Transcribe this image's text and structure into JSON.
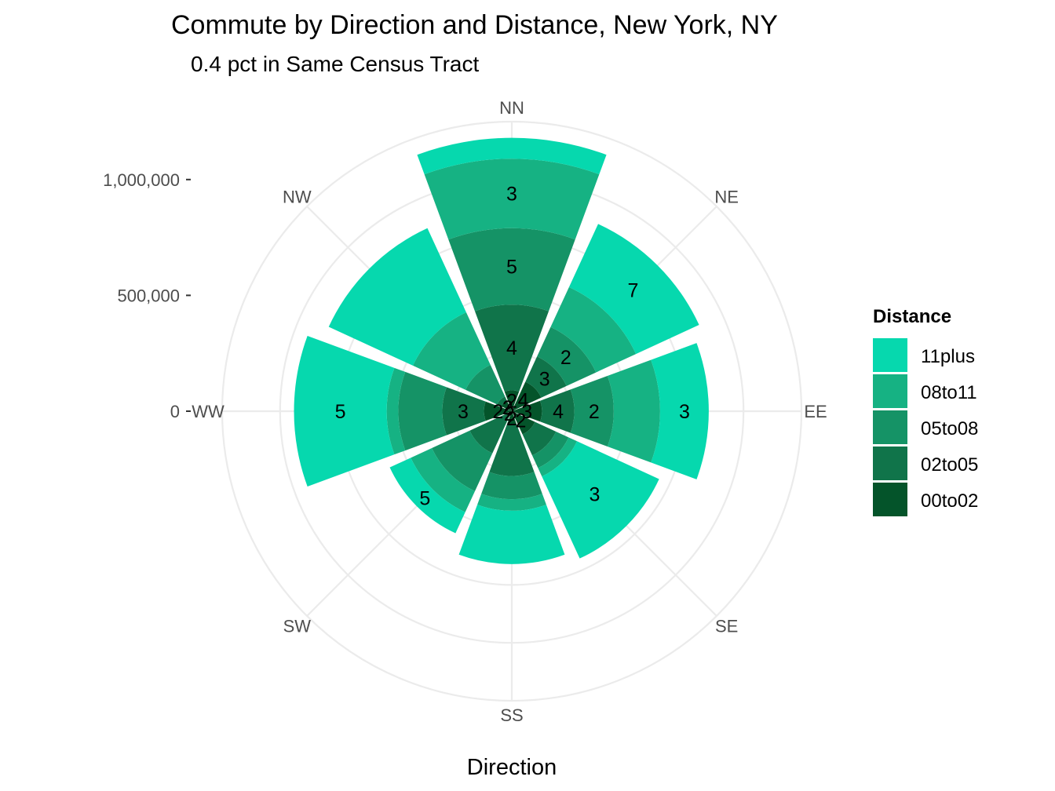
{
  "chart_data": {
    "type": "bar",
    "coord": "polar",
    "title": "Commute by Direction and Distance, New York, NY",
    "subtitle": "0.4 pct in Same Census Tract",
    "xlabel": "Direction",
    "ylabel": "",
    "categories": [
      "NN",
      "NE",
      "EE",
      "SE",
      "SS",
      "SW",
      "WW",
      "NW"
    ],
    "ylim": [
      0,
      1250000
    ],
    "yticks": [
      0,
      500000,
      1000000
    ],
    "ytick_labels": [
      "0",
      "500,000",
      "1,000,000"
    ],
    "stacked": true,
    "legend": {
      "title": "Distance",
      "position": "right"
    },
    "grid": true,
    "series": [
      {
        "name": "00to02",
        "color": "#04542a",
        "values": [
          90000,
          140000,
          130000,
          110000,
          60000,
          30000,
          120000,
          50000
        ],
        "labels": [
          "2",
          "4",
          "3",
          "2",
          "2",
          "2",
          "2",
          "2"
        ]
      },
      {
        "name": "02to05",
        "color": "#10744a",
        "values": [
          370000,
          120000,
          140000,
          100000,
          220000,
          170000,
          180000,
          20000
        ],
        "labels": [
          "4",
          "3",
          "4",
          "",
          "",
          "",
          "3",
          ""
        ]
      },
      {
        "name": "05to08",
        "color": "#159366",
        "values": [
          330000,
          140000,
          170000,
          60000,
          100000,
          180000,
          190000,
          150000
        ],
        "labels": [
          "5",
          "2",
          "2",
          "",
          "",
          "",
          "",
          ""
        ]
      },
      {
        "name": "08to11",
        "color": "#16b283",
        "values": [
          300000,
          190000,
          200000,
          40000,
          50000,
          100000,
          50000,
          250000
        ],
        "labels": [
          "3",
          "",
          "",
          "",
          "",
          "",
          "",
          ""
        ]
      },
      {
        "name": "11plus",
        "color": "#06d8ae",
        "values": [
          90000,
          300000,
          210000,
          390000,
          230000,
          100000,
          400000,
          400000
        ],
        "labels": [
          "",
          "7",
          "3",
          "3",
          "",
          "5",
          "5",
          ""
        ]
      }
    ],
    "legend_order": [
      "11plus",
      "08to11",
      "05to08",
      "02to05",
      "00to02"
    ]
  }
}
